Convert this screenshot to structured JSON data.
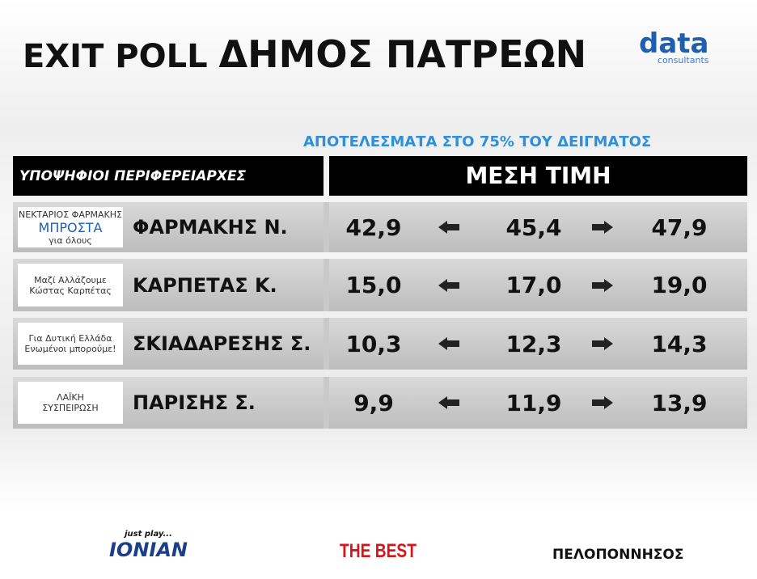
{
  "header": {
    "title_prefix": "EXIT POLL",
    "title": "ΔΗΜΟΣ ΠΑΤΡΕΩΝ",
    "logo": {
      "name": "data",
      "tagline": "consultants"
    }
  },
  "subtitle": "ΑΠΟΤΕΛΕΣΜΑΤΑ ΣΤΟ 75% ΤΟΥ ΔΕΙΓΜΑΤΟΣ",
  "table": {
    "columns": [
      "ΥΠΟΨΗΦΙΟΙ ΠΕΡΙΦΕΡΕΙΑΡΧΕΣ",
      "ΜΕΣΗ ΤΙΜΗ"
    ],
    "rows": [
      {
        "logo": [
          "ΝΕΚΤΑΡΙΟΣ ΦΑΡΜΑΚΗΣ",
          "ΜΠΡΟΣΤΑ",
          "για όλους"
        ],
        "candidate": "ΦΑΡΜΑΚΗΣ Ν.",
        "low": "42,9",
        "mean": "45,4",
        "high": "47,9"
      },
      {
        "logo": [
          "Μαζί Αλλάζουμε",
          "Κώστας Καρπέτας"
        ],
        "candidate": "ΚΑΡΠΕΤΑΣ Κ.",
        "low": "15,0",
        "mean": "17,0",
        "high": "19,0"
      },
      {
        "logo": [
          "Για Δυτική Ελλάδα",
          "Ενωμένοι μπορούμε!"
        ],
        "candidate": "ΣΚΙΑΔΑΡΕΣΗΣ Σ.",
        "low": "10,3",
        "mean": "12,3",
        "high": "14,3"
      },
      {
        "logo": [
          "ΛΑΪΚΗ",
          "ΣΥΣΠΕΙΡΩΣΗ"
        ],
        "candidate": "ΠΑΡΙΣΗΣ Σ.",
        "low": "9,9",
        "mean": "11,9",
        "high": "13,9"
      }
    ]
  },
  "footer": {
    "sponsors": [
      {
        "tagline": "just play...",
        "name": "IONIAN"
      },
      {
        "name": "THE BEST"
      },
      {
        "name": "ΠΕΛΟΠΟΝΝΗΣΟΣ"
      }
    ]
  }
}
